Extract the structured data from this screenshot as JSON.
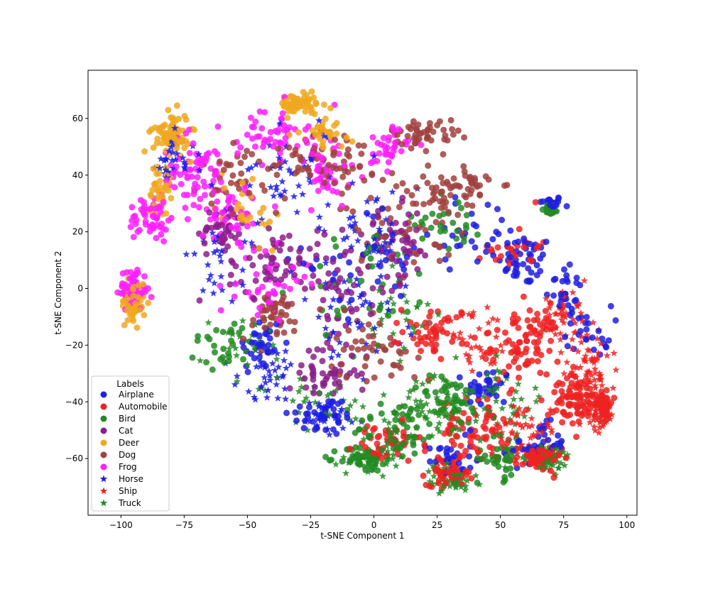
{
  "chart_data": {
    "type": "scatter",
    "title": "",
    "xlabel": "t-SNE Component 1",
    "ylabel": "t-SNE Component 2",
    "xlim": [
      -113,
      104
    ],
    "ylim": [
      -80,
      77
    ],
    "xticks": [
      -100,
      -75,
      -50,
      -25,
      0,
      25,
      50,
      75,
      100
    ],
    "xtick_labels": [
      "−100",
      "−75",
      "−50",
      "−25",
      "0",
      "25",
      "50",
      "75",
      "100"
    ],
    "yticks": [
      -60,
      -40,
      -20,
      0,
      20,
      40,
      60
    ],
    "ytick_labels": [
      "−60",
      "−40",
      "−20",
      "0",
      "20",
      "40",
      "60"
    ],
    "grid": false,
    "legend": {
      "title": "Labels",
      "placement": "lower-left"
    },
    "series": [
      {
        "name": "Airplane",
        "marker": "circle",
        "color": "#1f1fe0",
        "clusters": [
          [
            70,
            30,
            5,
            3,
            0.03
          ],
          [
            60,
            10,
            12,
            10,
            0.05
          ],
          [
            75,
            0,
            8,
            12,
            0.03
          ],
          [
            -45,
            -20,
            10,
            12,
            0.04
          ],
          [
            -20,
            -45,
            15,
            8,
            0.04
          ],
          [
            45,
            -35,
            10,
            8,
            0.04
          ],
          [
            65,
            -55,
            12,
            8,
            0.04
          ],
          [
            30,
            -60,
            10,
            8,
            0.03
          ],
          [
            0,
            10,
            30,
            20,
            0.04
          ],
          [
            40,
            20,
            20,
            15,
            0.03
          ],
          [
            85,
            -15,
            10,
            10,
            0.03
          ]
        ]
      },
      {
        "name": "Automobile",
        "marker": "circle",
        "color": "#ee2222",
        "clusters": [
          [
            60,
            -20,
            15,
            15,
            0.1
          ],
          [
            80,
            -40,
            12,
            10,
            0.08
          ],
          [
            40,
            -50,
            15,
            12,
            0.08
          ],
          [
            25,
            -15,
            15,
            10,
            0.06
          ],
          [
            65,
            -60,
            10,
            5,
            0.08
          ],
          [
            30,
            -65,
            10,
            5,
            0.07
          ],
          [
            5,
            -55,
            15,
            8,
            0.05
          ],
          [
            90,
            -40,
            5,
            5,
            0.06
          ],
          [
            55,
            15,
            12,
            10,
            0.03
          ]
        ]
      },
      {
        "name": "Bird",
        "marker": "circle",
        "color": "#228b22",
        "clusters": [
          [
            10,
            -50,
            20,
            12,
            0.06
          ],
          [
            -5,
            -60,
            10,
            5,
            0.05
          ],
          [
            30,
            -40,
            15,
            10,
            0.05
          ],
          [
            70,
            28,
            3,
            2,
            0.03
          ],
          [
            0,
            0,
            30,
            25,
            0.04
          ],
          [
            -60,
            -20,
            15,
            10,
            0.03
          ],
          [
            30,
            25,
            15,
            12,
            0.03
          ],
          [
            50,
            -60,
            10,
            8,
            0.04
          ]
        ]
      },
      {
        "name": "Cat",
        "marker": "circle",
        "color": "#8b1f8b",
        "clusters": [
          [
            -40,
            10,
            20,
            15,
            0.07
          ],
          [
            -10,
            0,
            20,
            20,
            0.06
          ],
          [
            -20,
            -30,
            15,
            10,
            0.05
          ],
          [
            10,
            15,
            15,
            15,
            0.05
          ],
          [
            -60,
            20,
            10,
            10,
            0.04
          ]
        ]
      },
      {
        "name": "Deer",
        "marker": "circle",
        "color": "#f0a81e",
        "clusters": [
          [
            -80,
            55,
            8,
            8,
            0.08
          ],
          [
            -30,
            65,
            8,
            4,
            0.08
          ],
          [
            -95,
            -5,
            5,
            8,
            0.07
          ],
          [
            -85,
            35,
            5,
            10,
            0.04
          ],
          [
            -20,
            55,
            10,
            8,
            0.04
          ],
          [
            -50,
            30,
            15,
            15,
            0.03
          ]
        ]
      },
      {
        "name": "Dog",
        "marker": "circle",
        "color": "#a0413e",
        "clusters": [
          [
            10,
            25,
            25,
            20,
            0.07
          ],
          [
            -20,
            45,
            20,
            15,
            0.06
          ],
          [
            35,
            35,
            15,
            10,
            0.06
          ],
          [
            -50,
            40,
            20,
            15,
            0.05
          ],
          [
            20,
            55,
            15,
            5,
            0.05
          ],
          [
            0,
            -20,
            20,
            15,
            0.05
          ],
          [
            -40,
            -10,
            15,
            10,
            0.05
          ]
        ]
      },
      {
        "name": "Frog",
        "marker": "circle",
        "color": "#ff1fff",
        "clusters": [
          [
            -70,
            40,
            15,
            15,
            0.08
          ],
          [
            -95,
            0,
            6,
            8,
            0.07
          ],
          [
            -88,
            25,
            10,
            10,
            0.06
          ],
          [
            -40,
            55,
            15,
            10,
            0.06
          ],
          [
            -20,
            40,
            15,
            15,
            0.05
          ],
          [
            -55,
            25,
            15,
            15,
            0.05
          ],
          [
            -40,
            0,
            15,
            10,
            0.04
          ],
          [
            5,
            50,
            10,
            8,
            0.04
          ]
        ]
      },
      {
        "name": "Horse",
        "marker": "star",
        "color": "#1a1ae6",
        "clusters": [
          [
            -30,
            40,
            30,
            20,
            0.05
          ],
          [
            -10,
            -10,
            25,
            20,
            0.05
          ],
          [
            -40,
            -30,
            15,
            10,
            0.04
          ],
          [
            -20,
            -45,
            15,
            8,
            0.04
          ],
          [
            -80,
            45,
            10,
            10,
            0.04
          ],
          [
            0,
            20,
            20,
            15,
            0.04
          ],
          [
            -60,
            10,
            15,
            15,
            0.03
          ]
        ]
      },
      {
        "name": "Ship",
        "marker": "star",
        "color": "#ee2222",
        "clusters": [
          [
            85,
            -30,
            10,
            15,
            0.08
          ],
          [
            75,
            -10,
            10,
            10,
            0.05
          ],
          [
            60,
            -50,
            15,
            10,
            0.05
          ],
          [
            40,
            -20,
            15,
            12,
            0.04
          ],
          [
            90,
            -45,
            5,
            5,
            0.05
          ]
        ]
      },
      {
        "name": "Truck",
        "marker": "star",
        "color": "#228b22",
        "clusters": [
          [
            20,
            -45,
            20,
            15,
            0.06
          ],
          [
            50,
            -40,
            20,
            15,
            0.06
          ],
          [
            70,
            -60,
            10,
            5,
            0.05
          ],
          [
            30,
            -68,
            10,
            5,
            0.05
          ],
          [
            0,
            -60,
            10,
            5,
            0.05
          ],
          [
            -20,
            -40,
            15,
            10,
            0.03
          ],
          [
            -50,
            -20,
            15,
            15,
            0.03
          ],
          [
            10,
            -10,
            20,
            15,
            0.03
          ]
        ]
      }
    ]
  }
}
